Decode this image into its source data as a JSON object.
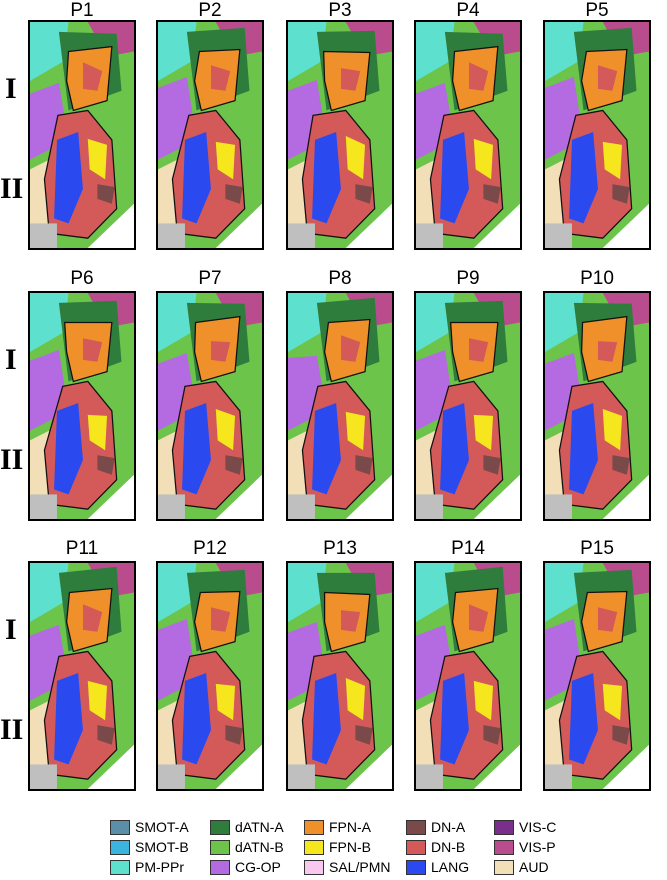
{
  "panels": [
    {
      "label": "P1"
    },
    {
      "label": "P2"
    },
    {
      "label": "P3"
    },
    {
      "label": "P4"
    },
    {
      "label": "P5"
    },
    {
      "label": "P6"
    },
    {
      "label": "P7"
    },
    {
      "label": "P8"
    },
    {
      "label": "P9"
    },
    {
      "label": "P10"
    },
    {
      "label": "P11"
    },
    {
      "label": "P12"
    },
    {
      "label": "P13"
    },
    {
      "label": "P14"
    },
    {
      "label": "P15"
    }
  ],
  "row_labels": [
    "I",
    "II"
  ],
  "legend": [
    {
      "label": "SMOT-A",
      "color": "#5b8fa8"
    },
    {
      "label": "dATN-A",
      "color": "#2e7d3c"
    },
    {
      "label": "FPN-A",
      "color": "#f0902a"
    },
    {
      "label": "DN-A",
      "color": "#7a4a4a"
    },
    {
      "label": "VIS-C",
      "color": "#7b2f8c"
    },
    {
      "label": "SMOT-B",
      "color": "#3cb4e0"
    },
    {
      "label": "dATN-B",
      "color": "#6cc44a"
    },
    {
      "label": "FPN-B",
      "color": "#f5e61e"
    },
    {
      "label": "DN-B",
      "color": "#d45a5a"
    },
    {
      "label": "VIS-P",
      "color": "#b84c8c"
    },
    {
      "label": "PM-PPr",
      "color": "#5ee0cf"
    },
    {
      "label": "CG-OP",
      "color": "#b46ae0"
    },
    {
      "label": "SAL/PMN",
      "color": "#f8c8ee"
    },
    {
      "label": "LANG",
      "color": "#2a4af0"
    },
    {
      "label": "AUD",
      "color": "#f2dfb8"
    }
  ]
}
